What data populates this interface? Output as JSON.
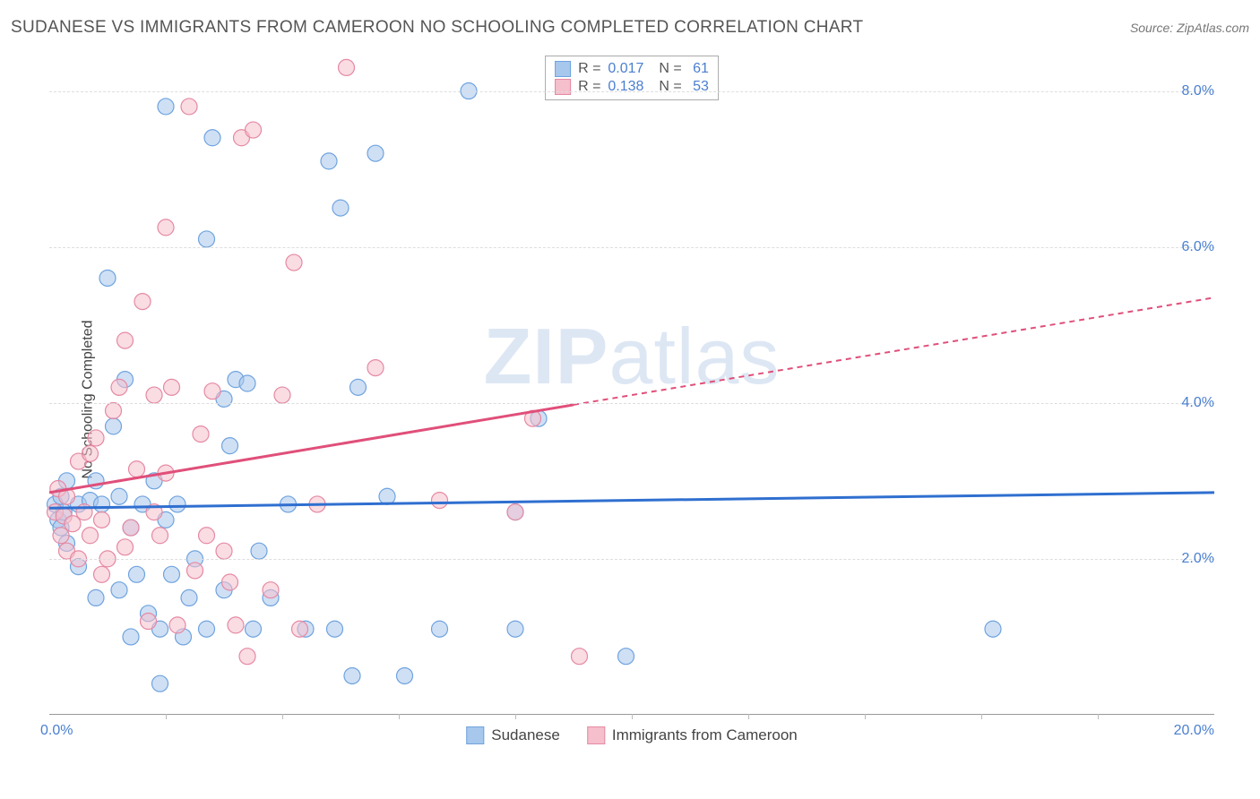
{
  "title": "SUDANESE VS IMMIGRANTS FROM CAMEROON NO SCHOOLING COMPLETED CORRELATION CHART",
  "source_label": "Source: ZipAtlas.com",
  "y_axis_label": "No Schooling Completed",
  "watermark": {
    "bold": "ZIP",
    "rest": "atlas"
  },
  "chart": {
    "type": "scatter",
    "xlim": [
      0,
      20
    ],
    "ylim": [
      0,
      8.5
    ],
    "x_tick_origin": "0.0%",
    "x_tick_end": "20.0%",
    "y_ticks": [
      {
        "v": 2.0,
        "label": "2.0%"
      },
      {
        "v": 4.0,
        "label": "4.0%"
      },
      {
        "v": 6.0,
        "label": "6.0%"
      },
      {
        "v": 8.0,
        "label": "8.0%"
      }
    ],
    "x_minor_ticks": [
      2,
      4,
      6,
      8,
      10,
      12,
      14,
      16,
      18
    ],
    "background_color": "#ffffff",
    "grid_color": "#dddddd",
    "marker_radius": 9,
    "marker_opacity": 0.55,
    "series": [
      {
        "name": "Sudanese",
        "fill_color": "#a7c7ec",
        "stroke_color": "#6fa3de",
        "r_value": "0.017",
        "n_value": "61",
        "regression": {
          "x1": 0,
          "y1": 2.65,
          "x2": 20,
          "y2": 2.85,
          "solid_until_x": 20,
          "line_color": "#2f6fd0"
        },
        "points": [
          [
            0.1,
            2.7
          ],
          [
            0.15,
            2.5
          ],
          [
            0.2,
            2.8
          ],
          [
            0.2,
            2.4
          ],
          [
            0.25,
            2.6
          ],
          [
            0.3,
            3.0
          ],
          [
            0.3,
            2.2
          ],
          [
            0.5,
            2.7
          ],
          [
            0.5,
            1.9
          ],
          [
            0.7,
            2.75
          ],
          [
            0.8,
            3.0
          ],
          [
            0.8,
            1.5
          ],
          [
            0.9,
            2.7
          ],
          [
            1.0,
            5.6
          ],
          [
            1.1,
            3.7
          ],
          [
            1.2,
            2.8
          ],
          [
            1.2,
            1.6
          ],
          [
            1.3,
            4.3
          ],
          [
            1.4,
            1.0
          ],
          [
            1.4,
            2.4
          ],
          [
            1.5,
            1.8
          ],
          [
            1.6,
            2.7
          ],
          [
            1.7,
            1.3
          ],
          [
            1.8,
            3.0
          ],
          [
            1.9,
            1.1
          ],
          [
            1.9,
            0.4
          ],
          [
            2.0,
            7.8
          ],
          [
            2.0,
            2.5
          ],
          [
            2.1,
            1.8
          ],
          [
            2.2,
            2.7
          ],
          [
            2.3,
            1.0
          ],
          [
            2.4,
            1.5
          ],
          [
            2.5,
            2.0
          ],
          [
            2.7,
            6.1
          ],
          [
            2.7,
            1.1
          ],
          [
            2.8,
            7.4
          ],
          [
            3.0,
            4.05
          ],
          [
            3.0,
            1.6
          ],
          [
            3.1,
            3.45
          ],
          [
            3.2,
            4.3
          ],
          [
            3.4,
            4.25
          ],
          [
            3.5,
            1.1
          ],
          [
            3.6,
            2.1
          ],
          [
            3.8,
            1.5
          ],
          [
            4.1,
            2.7
          ],
          [
            4.4,
            1.1
          ],
          [
            4.8,
            7.1
          ],
          [
            4.9,
            1.1
          ],
          [
            5.0,
            6.5
          ],
          [
            5.2,
            0.5
          ],
          [
            5.3,
            4.2
          ],
          [
            5.6,
            7.2
          ],
          [
            5.8,
            2.8
          ],
          [
            6.1,
            0.5
          ],
          [
            6.7,
            1.1
          ],
          [
            7.2,
            8.0
          ],
          [
            8.0,
            1.1
          ],
          [
            8.0,
            2.6
          ],
          [
            8.4,
            3.8
          ],
          [
            9.9,
            0.75
          ],
          [
            16.2,
            1.1
          ]
        ]
      },
      {
        "name": "Immigrants from Cameroon",
        "fill_color": "#f5bfcc",
        "stroke_color": "#e589a3",
        "r_value": "0.138",
        "n_value": "53",
        "regression": {
          "x1": 0,
          "y1": 2.85,
          "x2": 20,
          "y2": 5.35,
          "solid_until_x": 9,
          "line_color": "#e04f7a"
        },
        "points": [
          [
            0.1,
            2.6
          ],
          [
            0.15,
            2.9
          ],
          [
            0.2,
            2.3
          ],
          [
            0.25,
            2.55
          ],
          [
            0.3,
            2.8
          ],
          [
            0.3,
            2.1
          ],
          [
            0.4,
            2.45
          ],
          [
            0.5,
            3.25
          ],
          [
            0.5,
            2.0
          ],
          [
            0.6,
            2.6
          ],
          [
            0.7,
            2.3
          ],
          [
            0.7,
            3.35
          ],
          [
            0.8,
            3.55
          ],
          [
            0.9,
            2.5
          ],
          [
            0.9,
            1.8
          ],
          [
            1.0,
            2.0
          ],
          [
            1.1,
            3.9
          ],
          [
            1.2,
            4.2
          ],
          [
            1.3,
            2.15
          ],
          [
            1.3,
            4.8
          ],
          [
            1.4,
            2.4
          ],
          [
            1.5,
            3.15
          ],
          [
            1.6,
            5.3
          ],
          [
            1.7,
            1.2
          ],
          [
            1.8,
            4.1
          ],
          [
            1.8,
            2.6
          ],
          [
            1.9,
            2.3
          ],
          [
            2.0,
            6.25
          ],
          [
            2.0,
            3.1
          ],
          [
            2.1,
            4.2
          ],
          [
            2.2,
            1.15
          ],
          [
            2.4,
            7.8
          ],
          [
            2.5,
            1.85
          ],
          [
            2.6,
            3.6
          ],
          [
            2.7,
            2.3
          ],
          [
            2.8,
            4.15
          ],
          [
            3.0,
            2.1
          ],
          [
            3.1,
            1.7
          ],
          [
            3.2,
            1.15
          ],
          [
            3.3,
            7.4
          ],
          [
            3.4,
            0.75
          ],
          [
            3.5,
            7.5
          ],
          [
            3.8,
            1.6
          ],
          [
            4.0,
            4.1
          ],
          [
            4.2,
            5.8
          ],
          [
            4.3,
            1.1
          ],
          [
            4.6,
            2.7
          ],
          [
            5.1,
            8.3
          ],
          [
            5.6,
            4.45
          ],
          [
            6.7,
            2.75
          ],
          [
            8.0,
            2.6
          ],
          [
            8.3,
            3.8
          ],
          [
            9.1,
            0.75
          ]
        ]
      }
    ],
    "bottom_legend": [
      {
        "label": "Sudanese",
        "fill": "#a7c7ec",
        "stroke": "#6fa3de"
      },
      {
        "label": "Immigrants from Cameroon",
        "fill": "#f5bfcc",
        "stroke": "#e589a3"
      }
    ]
  }
}
